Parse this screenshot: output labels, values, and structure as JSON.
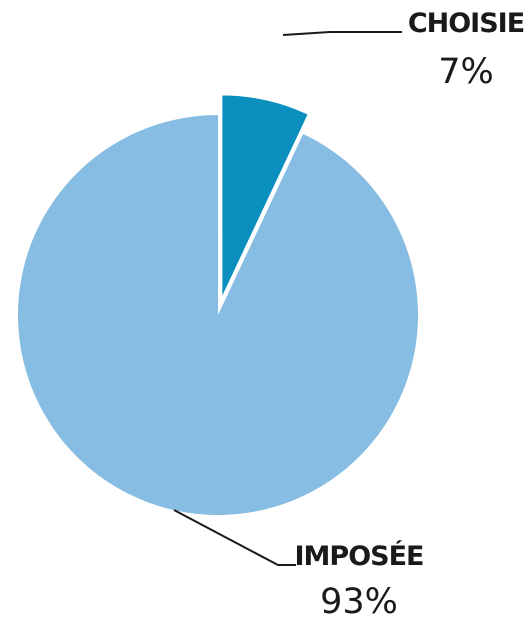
{
  "chart_data": {
    "type": "pie",
    "slices": [
      {
        "name": "CHOISIE",
        "value": 7,
        "value_label": "7%",
        "color": "#0a8fbf",
        "exploded": true
      },
      {
        "name": "IMPOSÉE",
        "value": 93,
        "value_label": "93%",
        "color": "#87bde2",
        "exploded": false
      }
    ],
    "title": "",
    "legend": "none"
  }
}
